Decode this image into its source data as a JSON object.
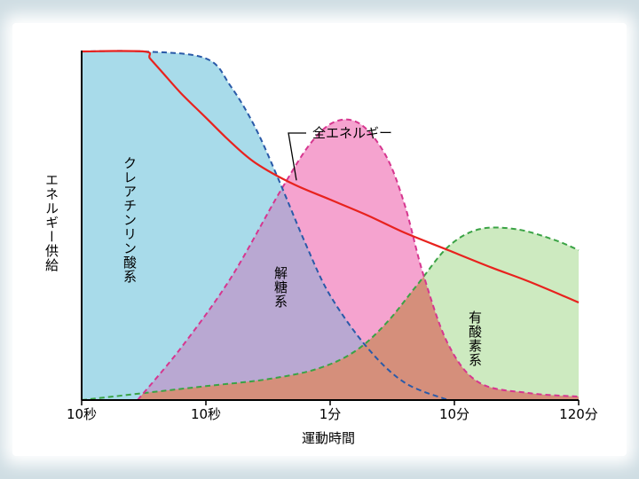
{
  "chart_data": {
    "type": "area",
    "title": "",
    "ylabel": "エネルギー供給",
    "xlabel": "運動時間",
    "x_ticks": [
      "10秒",
      "10秒",
      "1分",
      "10分",
      "120分"
    ],
    "x_scale": "log-like (tick labels as printed)",
    "grid": false,
    "legend": "none (labels placed on areas)",
    "y_units": "relative",
    "ylim": [
      0,
      1
    ],
    "series": [
      {
        "name": "クレアチンリン酸系",
        "style": "area-dashed",
        "fill": "#a8dbea",
        "stroke": "#2a5aa8",
        "x": [
          0,
          0.5,
          1.0,
          1.2,
          1.4,
          1.6,
          1.8,
          2.0,
          2.3,
          2.6,
          2.95
        ],
        "y": [
          1.0,
          1.0,
          0.98,
          0.9,
          0.78,
          0.62,
          0.45,
          0.3,
          0.15,
          0.05,
          0.0
        ]
      },
      {
        "name": "解糖系",
        "style": "area-dashed",
        "fill": "#f5a3cf",
        "stroke": "#d6368f",
        "x": [
          0.45,
          0.8,
          1.2,
          1.6,
          1.85,
          2.05,
          2.25,
          2.45,
          2.6,
          2.75,
          2.95,
          3.2,
          3.6,
          4.0
        ],
        "y": [
          0.0,
          0.15,
          0.35,
          0.6,
          0.74,
          0.8,
          0.79,
          0.7,
          0.56,
          0.36,
          0.16,
          0.05,
          0.02,
          0.01
        ]
      },
      {
        "name": "有酸素系",
        "style": "area-dashed",
        "fill": "#cdeac0",
        "stroke": "#3aa345",
        "x": [
          0,
          0.5,
          1.0,
          1.5,
          1.9,
          2.2,
          2.45,
          2.7,
          2.95,
          3.2,
          3.5,
          3.8,
          4.0
        ],
        "y": [
          0.0,
          0.02,
          0.04,
          0.06,
          0.09,
          0.14,
          0.22,
          0.33,
          0.44,
          0.49,
          0.49,
          0.46,
          0.43
        ]
      },
      {
        "name": "全エネルギー",
        "style": "line",
        "stroke": "#e8221e",
        "x": [
          0,
          0.5,
          0.55,
          0.65,
          0.8,
          1.0,
          1.2,
          1.4,
          1.7,
          2.0,
          2.3,
          2.6,
          2.95,
          3.3,
          3.6,
          4.0
        ],
        "y": [
          1.0,
          1.0,
          0.98,
          0.94,
          0.88,
          0.81,
          0.74,
          0.68,
          0.62,
          0.575,
          0.53,
          0.48,
          0.43,
          0.38,
          0.34,
          0.28
        ]
      }
    ],
    "overlap_colors": {
      "creatine_glycolysis": "#b9a8d2",
      "glycolysis_aerobic": "#d58f7b"
    },
    "annotations": [
      {
        "text": "全エネルギー",
        "leader_to_series": "全エネルギー"
      },
      {
        "text": "クレアチンリン酸系",
        "vertical": true
      },
      {
        "text": "解糖系",
        "vertical": true
      },
      {
        "text": "有酸素系",
        "vertical": true
      }
    ]
  }
}
